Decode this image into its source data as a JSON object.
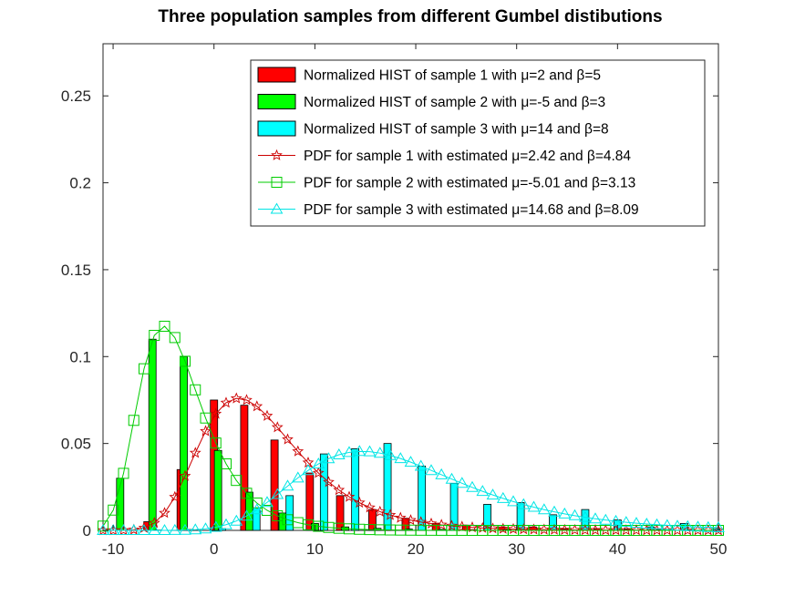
{
  "chart_data": {
    "type": "bar",
    "title": "Three population samples from different Gumbel distibutions",
    "xlabel": "",
    "ylabel": "",
    "xlim": [
      -11,
      50
    ],
    "ylim": [
      0,
      0.28
    ],
    "xticks": [
      -10,
      0,
      10,
      20,
      30,
      40,
      50
    ],
    "yticks": [
      0,
      0.05,
      0.1,
      0.15,
      0.2,
      0.25
    ],
    "xtick_labels": [
      "-10",
      "0",
      "10",
      "20",
      "30",
      "40",
      "50"
    ],
    "ytick_labels": [
      "0",
      "0.05",
      "0.1",
      "0.15",
      "0.2",
      "0.25"
    ],
    "grid": false,
    "legend_position": "top-right",
    "histograms": [
      {
        "name": "Normalized HIST of sample 1 with μ=2 and β=5",
        "color": "#ff0000",
        "x": [
          -6.6,
          -3.3,
          0,
          3,
          6,
          9.5,
          12.5,
          15.7,
          19,
          22,
          25,
          28.5,
          31.6,
          34.7,
          38,
          41,
          44.2,
          47.3
        ],
        "values": [
          0.005,
          0.035,
          0.075,
          0.072,
          0.052,
          0.033,
          0.02,
          0.012,
          0.007,
          0.004,
          0.003,
          0.002,
          0.002,
          0.001,
          0.001,
          0.0008,
          0.0005,
          0.0003
        ]
      },
      {
        "name": "Normalized HIST of sample 2 with μ=-5 and β=3",
        "color": "#00ff00",
        "x": [
          -9.3,
          -6.1,
          -3,
          0.4,
          3.5,
          6.8,
          10,
          13,
          16.2,
          19.3,
          22.6,
          25.7,
          29,
          32.1,
          35.3,
          38.5,
          41.7,
          44.8
        ],
        "values": [
          0.03,
          0.11,
          0.1,
          0.046,
          0.022,
          0.01,
          0.004,
          0.002,
          0.0012,
          0.0008,
          0.0006,
          0.0004,
          0.0003,
          0.0002,
          0.0002,
          0.0001,
          0.0001,
          0.0001
        ]
      },
      {
        "name": "Normalized HIST of sample 3 with μ=14 and β=8",
        "color": "#00ffff",
        "x": [
          -5.6,
          -2.4,
          0.8,
          4.2,
          7.5,
          10.9,
          14,
          17.2,
          20.6,
          23.8,
          27.1,
          30.4,
          33.6,
          36.8,
          40,
          43.3,
          46.6,
          49.8
        ],
        "values": [
          0.0002,
          0.0005,
          0.001,
          0.013,
          0.02,
          0.044,
          0.047,
          0.05,
          0.037,
          0.027,
          0.015,
          0.016,
          0.009,
          0.012,
          0.006,
          0.002,
          0.004,
          0.001
        ]
      }
    ],
    "pdf_curves": [
      {
        "name": "PDF for sample 1 with estimated μ=2.42 and β=4.84",
        "color": "#cc0000",
        "marker": "star",
        "mu": 2.42,
        "beta": 4.84,
        "x_range": [
          -11,
          50
        ],
        "n_points": 61
      },
      {
        "name": "PDF for sample 2 with estimated μ=-5.01 and β=3.13",
        "color": "#00cc00",
        "marker": "square",
        "mu": -5.01,
        "beta": 3.13,
        "x_range": [
          -11,
          50
        ],
        "n_points": 61
      },
      {
        "name": "PDF for sample 3 with estimated μ=14.68 and β=8.09",
        "color": "#00e5e5",
        "marker": "triangle",
        "mu": 14.68,
        "beta": 8.09,
        "x_range": [
          -11,
          50
        ],
        "n_points": 61
      }
    ]
  }
}
